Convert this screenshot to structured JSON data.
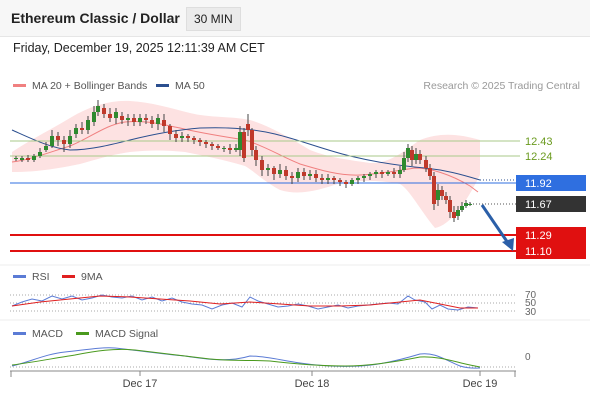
{
  "header": {
    "title": "Ethereum Classic / Dollar",
    "timeframe": "30 MIN"
  },
  "datetime": "Friday, December 19, 2025 12:11:39 AM CET",
  "legend": {
    "ma_bollinger": {
      "label": "MA 20 + Bollinger Bands",
      "color": "#f08080"
    },
    "ma50": {
      "label": "MA 50",
      "color": "#2b4f8f"
    }
  },
  "copyright": "Research © 2025 Trading Central",
  "rsi_legend": {
    "rsi": {
      "label": "RSI",
      "color": "#5b7bd5"
    },
    "ma9": {
      "label": "9MA",
      "color": "#e02020"
    }
  },
  "macd_legend": {
    "macd": {
      "label": "MACD",
      "color": "#5b7bd5"
    },
    "signal": {
      "label": "MACD Signal",
      "color": "#4a9a1e"
    }
  },
  "price_levels": [
    {
      "label": "12.43",
      "value": 12.43,
      "kind": "resistance",
      "color": "#6a9a1e"
    },
    {
      "label": "12.24",
      "value": 12.24,
      "kind": "resistance",
      "color": "#6a9a1e"
    },
    {
      "label": "11.92",
      "value": 11.92,
      "kind": "current-price",
      "color": "#2f6fe0"
    },
    {
      "label": "11.67",
      "value": 11.67,
      "kind": "last-price",
      "color": "#333333"
    },
    {
      "label": "11.29",
      "value": 11.29,
      "kind": "target",
      "color": "#e01010"
    },
    {
      "label": "11.10",
      "value": 11.1,
      "kind": "target",
      "color": "#e01010"
    }
  ],
  "rsi_levels": [
    "70",
    "50",
    "30"
  ],
  "macd_zero_label": "0",
  "x_axis_labels": [
    "Dec 17",
    "Dec 18",
    "Dec 19"
  ],
  "colors": {
    "up": "#2f8a2f",
    "down": "#c0392b",
    "band": "#fde2e2"
  }
}
